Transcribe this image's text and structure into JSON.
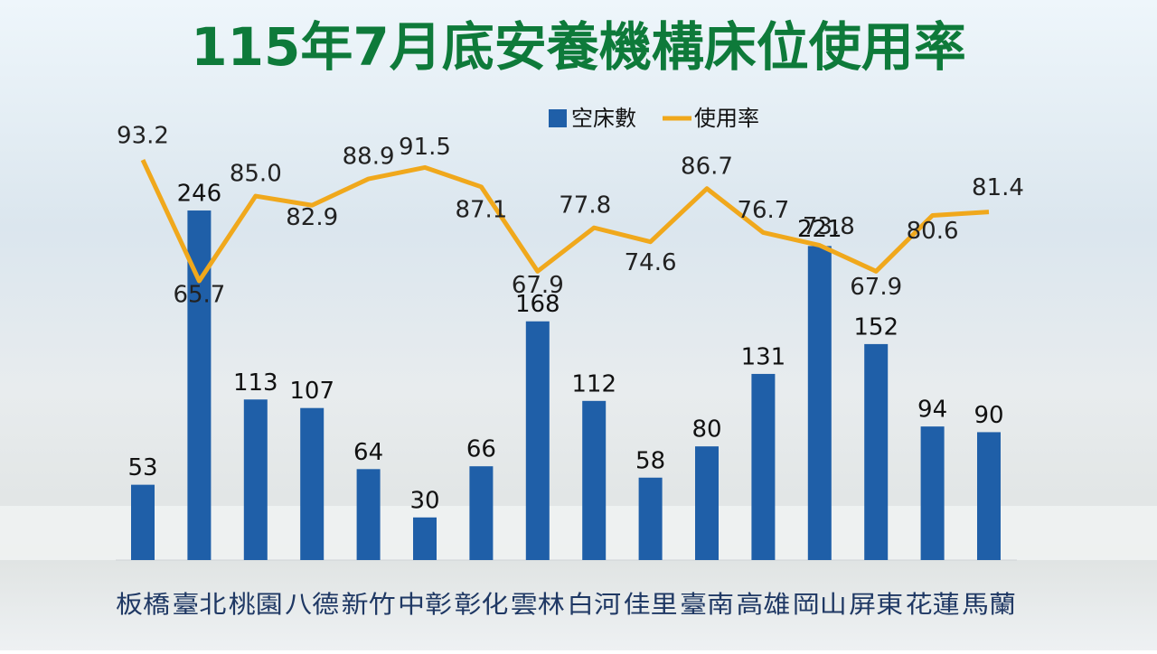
{
  "chart_data": {
    "type": "bar-line",
    "title": "115年7月底安養機構床位使用率",
    "categories": [
      "板橋",
      "臺北",
      "桃園",
      "八德",
      "新竹",
      "中彰",
      "彰化",
      "雲林",
      "白河",
      "佳里",
      "臺南",
      "高雄",
      "岡山",
      "屏東",
      "花蓮",
      "馬蘭"
    ],
    "series": [
      {
        "name": "空床數",
        "type": "bar",
        "color": "#1f5fa8",
        "values": [
          53,
          246,
          113,
          107,
          64,
          30,
          66,
          168,
          112,
          58,
          80,
          131,
          221,
          152,
          94,
          90
        ]
      },
      {
        "name": "使用率",
        "type": "line",
        "color": "#f0a81c",
        "values": [
          93.2,
          65.7,
          85.0,
          82.9,
          88.9,
          91.5,
          87.1,
          67.9,
          77.8,
          74.6,
          86.7,
          76.7,
          73.8,
          67.9,
          80.6,
          81.4
        ],
        "value_labels": [
          "93.2",
          "65.7",
          "85.0",
          "82.9",
          "88.9",
          "91.5",
          "87.1",
          "67.9",
          "77.8",
          "74.6",
          "86.7",
          "76.7",
          "73.8",
          "67.9",
          "80.6",
          "81.4"
        ]
      }
    ],
    "legend": "top"
  }
}
